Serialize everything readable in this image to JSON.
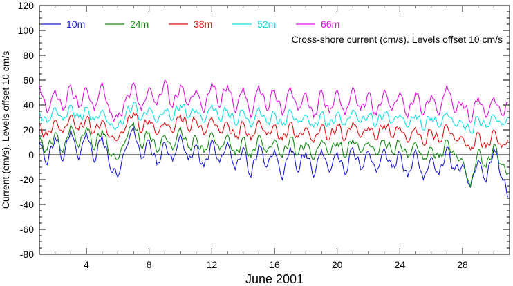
{
  "chart_data": {
    "type": "line",
    "title": "",
    "annotation": "Cross-shore current (cm/s). Levels offset 10 cm/s",
    "xlabel": "June 2001",
    "ylabel": "Current (cm/s). Levels offset 10 cm/s",
    "xlim": [
      1,
      31
    ],
    "ylim": [
      -80,
      120
    ],
    "x_ticks": [
      4,
      8,
      12,
      16,
      20,
      24,
      28
    ],
    "y_ticks": [
      -80,
      -60,
      -40,
      -20,
      0,
      20,
      40,
      60,
      80,
      100,
      120
    ],
    "zero_line": 0,
    "grid": false,
    "legend_position": "top",
    "series": [
      {
        "name": "10m",
        "color": "#1a1ad6",
        "mean": 0,
        "x": [
          1.0,
          1.5,
          2.0,
          2.5,
          3.0,
          3.5,
          4.0,
          4.5,
          5.0,
          5.5,
          6.0,
          6.5,
          7.0,
          7.5,
          8.0,
          8.5,
          9.0,
          9.5,
          10.0,
          10.5,
          11.0,
          11.5,
          12.0,
          12.5,
          13.0,
          13.5,
          14.0,
          14.5,
          15.0,
          15.5,
          16.0,
          16.5,
          17.0,
          17.5,
          18.0,
          18.5,
          19.0,
          19.5,
          20.0,
          20.5,
          21.0,
          21.5,
          22.0,
          22.5,
          23.0,
          23.5,
          24.0,
          24.5,
          25.0,
          25.5,
          26.0,
          26.5,
          27.0,
          27.5,
          28.0,
          28.5,
          29.0,
          29.5,
          30.0,
          30.5,
          30.9
        ],
        "y": [
          10,
          -8,
          14,
          -5,
          20,
          -4,
          18,
          -6,
          15,
          -10,
          -18,
          5,
          22,
          -3,
          12,
          -8,
          10,
          -5,
          16,
          -4,
          8,
          -10,
          12,
          -6,
          10,
          -12,
          6,
          -18,
          8,
          -10,
          4,
          -20,
          6,
          -14,
          2,
          -18,
          4,
          -14,
          2,
          -16,
          6,
          -12,
          3,
          -14,
          5,
          -10,
          2,
          -18,
          4,
          -20,
          -2,
          -16,
          6,
          -12,
          -8,
          -26,
          -4,
          -22,
          5,
          -18,
          -34
        ]
      },
      {
        "name": "24m",
        "color": "#0e8a0e",
        "mean": 10,
        "x": [
          1.0,
          1.5,
          2.0,
          2.5,
          3.0,
          3.5,
          4.0,
          4.5,
          5.0,
          5.5,
          6.0,
          6.5,
          7.0,
          7.5,
          8.0,
          8.5,
          9.0,
          9.5,
          10.0,
          10.5,
          11.0,
          11.5,
          12.0,
          12.5,
          13.0,
          13.5,
          14.0,
          14.5,
          15.0,
          15.5,
          16.0,
          16.5,
          17.0,
          17.5,
          18.0,
          18.5,
          19.0,
          19.5,
          20.0,
          20.5,
          21.0,
          21.5,
          22.0,
          22.5,
          23.0,
          23.5,
          24.0,
          24.5,
          25.0,
          25.5,
          26.0,
          26.5,
          27.0,
          27.5,
          28.0,
          28.5,
          29.0,
          29.5,
          30.0,
          30.5,
          30.9
        ],
        "y": [
          12,
          4,
          18,
          2,
          24,
          6,
          22,
          4,
          20,
          0,
          -4,
          12,
          26,
          6,
          18,
          2,
          16,
          4,
          22,
          6,
          14,
          2,
          18,
          4,
          16,
          0,
          14,
          -2,
          16,
          2,
          12,
          -2,
          14,
          0,
          10,
          -4,
          12,
          0,
          10,
          -2,
          12,
          2,
          10,
          0,
          12,
          2,
          10,
          -2,
          10,
          -4,
          6,
          -2,
          12,
          0,
          -4,
          -26,
          4,
          -10,
          8,
          -8,
          -16
        ]
      },
      {
        "name": "38m",
        "color": "#e01010",
        "mean": 20,
        "x": [
          1.0,
          1.5,
          2.0,
          2.5,
          3.0,
          3.5,
          4.0,
          4.5,
          5.0,
          5.5,
          6.0,
          6.5,
          7.0,
          7.5,
          8.0,
          8.5,
          9.0,
          9.5,
          10.0,
          10.5,
          11.0,
          11.5,
          12.0,
          12.5,
          13.0,
          13.5,
          14.0,
          14.5,
          15.0,
          15.5,
          16.0,
          16.5,
          17.0,
          17.5,
          18.0,
          18.5,
          19.0,
          19.5,
          20.0,
          20.5,
          21.0,
          21.5,
          22.0,
          22.5,
          23.0,
          23.5,
          24.0,
          24.5,
          25.0,
          25.5,
          26.0,
          26.5,
          27.0,
          27.5,
          28.0,
          28.5,
          29.0,
          29.5,
          30.0,
          30.5,
          30.9
        ],
        "y": [
          24,
          16,
          28,
          18,
          32,
          20,
          30,
          18,
          28,
          14,
          12,
          22,
          34,
          18,
          28,
          16,
          26,
          18,
          32,
          20,
          28,
          16,
          30,
          18,
          26,
          14,
          26,
          12,
          28,
          16,
          24,
          12,
          26,
          14,
          22,
          10,
          24,
          12,
          24,
          12,
          26,
          14,
          22,
          12,
          24,
          14,
          22,
          10,
          22,
          8,
          20,
          10,
          24,
          12,
          14,
          4,
          18,
          6,
          20,
          6,
          12
        ]
      },
      {
        "name": "52m",
        "color": "#10e0e0",
        "mean": 30,
        "x": [
          1.0,
          1.5,
          2.0,
          2.5,
          3.0,
          3.5,
          4.0,
          4.5,
          5.0,
          5.5,
          6.0,
          6.5,
          7.0,
          7.5,
          8.0,
          8.5,
          9.0,
          9.5,
          10.0,
          10.5,
          11.0,
          11.5,
          12.0,
          12.5,
          13.0,
          13.5,
          14.0,
          14.5,
          15.0,
          15.5,
          16.0,
          16.5,
          17.0,
          17.5,
          18.0,
          18.5,
          19.0,
          19.5,
          20.0,
          20.5,
          21.0,
          21.5,
          22.0,
          22.5,
          23.0,
          23.5,
          24.0,
          24.5,
          25.0,
          25.5,
          26.0,
          26.5,
          27.0,
          27.5,
          28.0,
          28.5,
          29.0,
          29.5,
          30.0,
          30.5,
          30.9
        ],
        "y": [
          34,
          26,
          38,
          28,
          40,
          30,
          38,
          28,
          36,
          24,
          22,
          32,
          42,
          28,
          38,
          26,
          36,
          28,
          40,
          30,
          36,
          26,
          40,
          28,
          36,
          24,
          36,
          22,
          38,
          26,
          34,
          24,
          36,
          26,
          32,
          22,
          34,
          24,
          34,
          24,
          36,
          26,
          32,
          24,
          34,
          26,
          32,
          22,
          32,
          20,
          30,
          22,
          34,
          24,
          26,
          18,
          30,
          22,
          32,
          24,
          30
        ]
      },
      {
        "name": "66m",
        "color": "#e010e0",
        "mean": 40,
        "x": [
          1.0,
          1.5,
          2.0,
          2.5,
          3.0,
          3.5,
          4.0,
          4.5,
          5.0,
          5.5,
          6.0,
          6.5,
          7.0,
          7.5,
          8.0,
          8.5,
          9.0,
          9.5,
          10.0,
          10.5,
          11.0,
          11.5,
          12.0,
          12.5,
          13.0,
          13.5,
          14.0,
          14.5,
          15.0,
          15.5,
          16.0,
          16.5,
          17.0,
          17.5,
          18.0,
          18.5,
          19.0,
          19.5,
          20.0,
          20.5,
          21.0,
          21.5,
          22.0,
          22.5,
          23.0,
          23.5,
          24.0,
          24.5,
          25.0,
          25.5,
          26.0,
          26.5,
          27.0,
          27.5,
          28.0,
          28.5,
          29.0,
          29.5,
          30.0,
          30.5,
          30.9
        ],
        "y": [
          56,
          34,
          52,
          36,
          56,
          38,
          54,
          36,
          58,
          34,
          30,
          44,
          58,
          36,
          54,
          40,
          60,
          38,
          56,
          40,
          52,
          34,
          58,
          38,
          56,
          34,
          54,
          30,
          56,
          36,
          52,
          32,
          54,
          36,
          50,
          30,
          52,
          34,
          52,
          32,
          54,
          36,
          50,
          32,
          52,
          36,
          50,
          30,
          50,
          32,
          48,
          32,
          56,
          34,
          42,
          26,
          46,
          30,
          46,
          32,
          42
        ]
      }
    ]
  }
}
